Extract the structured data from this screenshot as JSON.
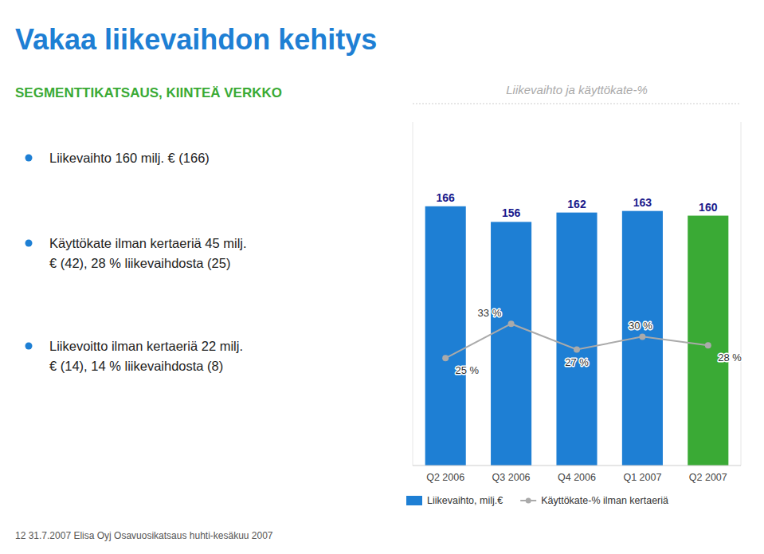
{
  "title": "Vakaa liikevaihdon kehitys",
  "subtitle": "SEGMENTTIKATSAUS, KIINTEÄ VERKKO",
  "bullet_points": [
    "Liikevaihto 160 milj. € (166)",
    "Käyttökate ilman kertaeriä 45 milj.\n€ (42), 28 % liikevaihdosta (25)",
    "Liikevoitto ilman kertaeriä 22 milj.\n€ (14), 14 % liikevaihdosta (8)"
  ],
  "footer": "12   31.7.2007   Elisa Oyj   Osavuosikatsaus huhti-kesäkuu 2007",
  "chart_data": {
    "type": "bar",
    "title": "Liikevaihto ja käyttökate-%",
    "categories": [
      "Q2 2006",
      "Q3 2006",
      "Q4 2006",
      "Q1 2007",
      "Q2 2007"
    ],
    "series": [
      {
        "name": "Liikevaihto, milj.€",
        "type": "bar",
        "colors": [
          "#1e7fd4",
          "#1e7fd4",
          "#1e7fd4",
          "#1e7fd4",
          "#3aaa35"
        ],
        "values": [
          166,
          156,
          162,
          163,
          160
        ],
        "data_labels": true
      },
      {
        "name": "Käyttökate-% ilman kertaeriä",
        "type": "line",
        "axis": "y2",
        "color": "#aaaaaa",
        "marker": "circle",
        "values": [
          25,
          33,
          27,
          30,
          28
        ],
        "value_labels": [
          "25 %",
          "33 %",
          "27 %",
          "30 %",
          "28 %"
        ],
        "data_labels": true
      }
    ],
    "ylim": [
      0,
      220
    ],
    "yticks": [],
    "y2lim": [
      0,
      80
    ],
    "y2ticks": [],
    "tick_labels": "x",
    "grid": false,
    "legend": "bottom"
  }
}
